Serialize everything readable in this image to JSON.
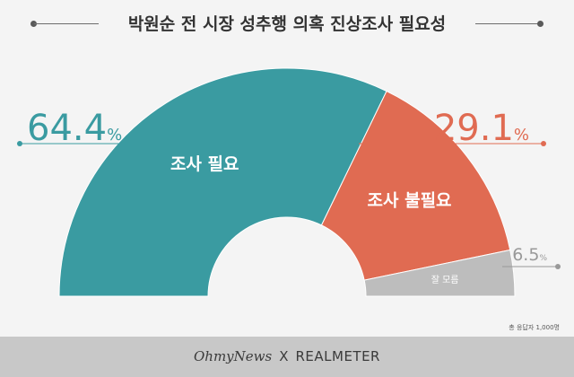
{
  "title": "박원순 전 시장 성추행 의혹 진상조사 필요성",
  "chart_data": {
    "type": "pie",
    "style": "semicircle-donut",
    "categories": [
      "조사 필요",
      "조사 불필요",
      "잘 모름"
    ],
    "values": [
      64.4,
      29.1,
      6.5
    ],
    "unit": "%",
    "colors": [
      "#3a9ba1",
      "#e06b52",
      "#bdbdbd"
    ],
    "value_labels": [
      {
        "number": "64.4",
        "unit": "%",
        "color": "#3a9ba1"
      },
      {
        "number": "29.1",
        "unit": "%",
        "color": "#e06b52"
      },
      {
        "number": "6.5",
        "unit": "%",
        "color": "#999999"
      }
    ]
  },
  "note": "총 응답자 1,000명",
  "footer": {
    "left": "OhmyNews",
    "separator": "X",
    "right": "REALMETER"
  }
}
